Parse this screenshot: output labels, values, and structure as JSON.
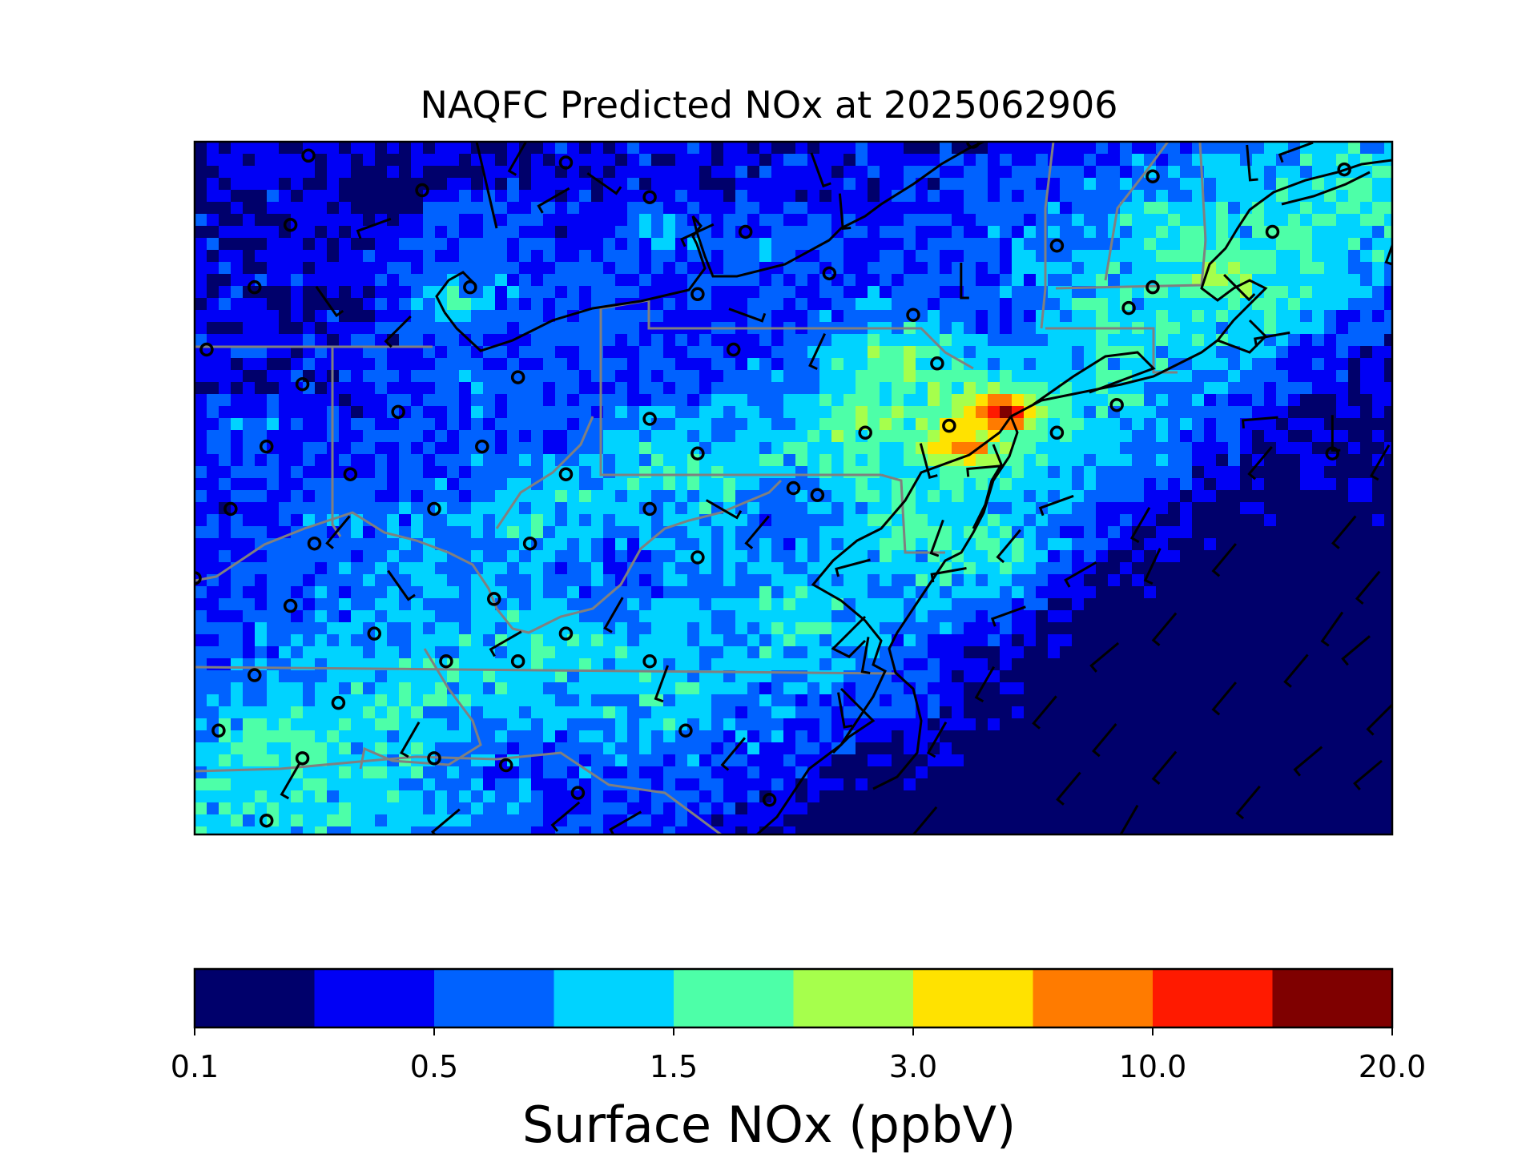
{
  "figure": {
    "title": "NAQFC Predicted NOx at 2025062906"
  },
  "colorbar": {
    "label": "Surface NOx (ppbV)",
    "ticks": [
      "0.1",
      "0.5",
      "1.5",
      "3.0",
      "10.0",
      "20.0"
    ],
    "tick_bin_index": [
      0,
      2,
      4,
      6,
      8,
      10
    ],
    "colors": [
      "#00006b",
      "#0000f5",
      "#0062ff",
      "#00d3ff",
      "#4dffa8",
      "#a6ff4c",
      "#ffe200",
      "#ff7b00",
      "#ff1a00",
      "#7f0000"
    ]
  },
  "chart_data": {
    "type": "heatmap",
    "title": "NAQFC Predicted NOx at 2025062906",
    "colorbar_label": "Surface NOx (ppbV)",
    "colorbar_ticks": [
      0.1,
      0.5,
      1.5,
      3.0,
      10.0,
      20.0
    ],
    "levels": 10,
    "overlays": [
      "state boundaries",
      "coastlines",
      "wind barbs",
      "monitoring stations"
    ]
  }
}
